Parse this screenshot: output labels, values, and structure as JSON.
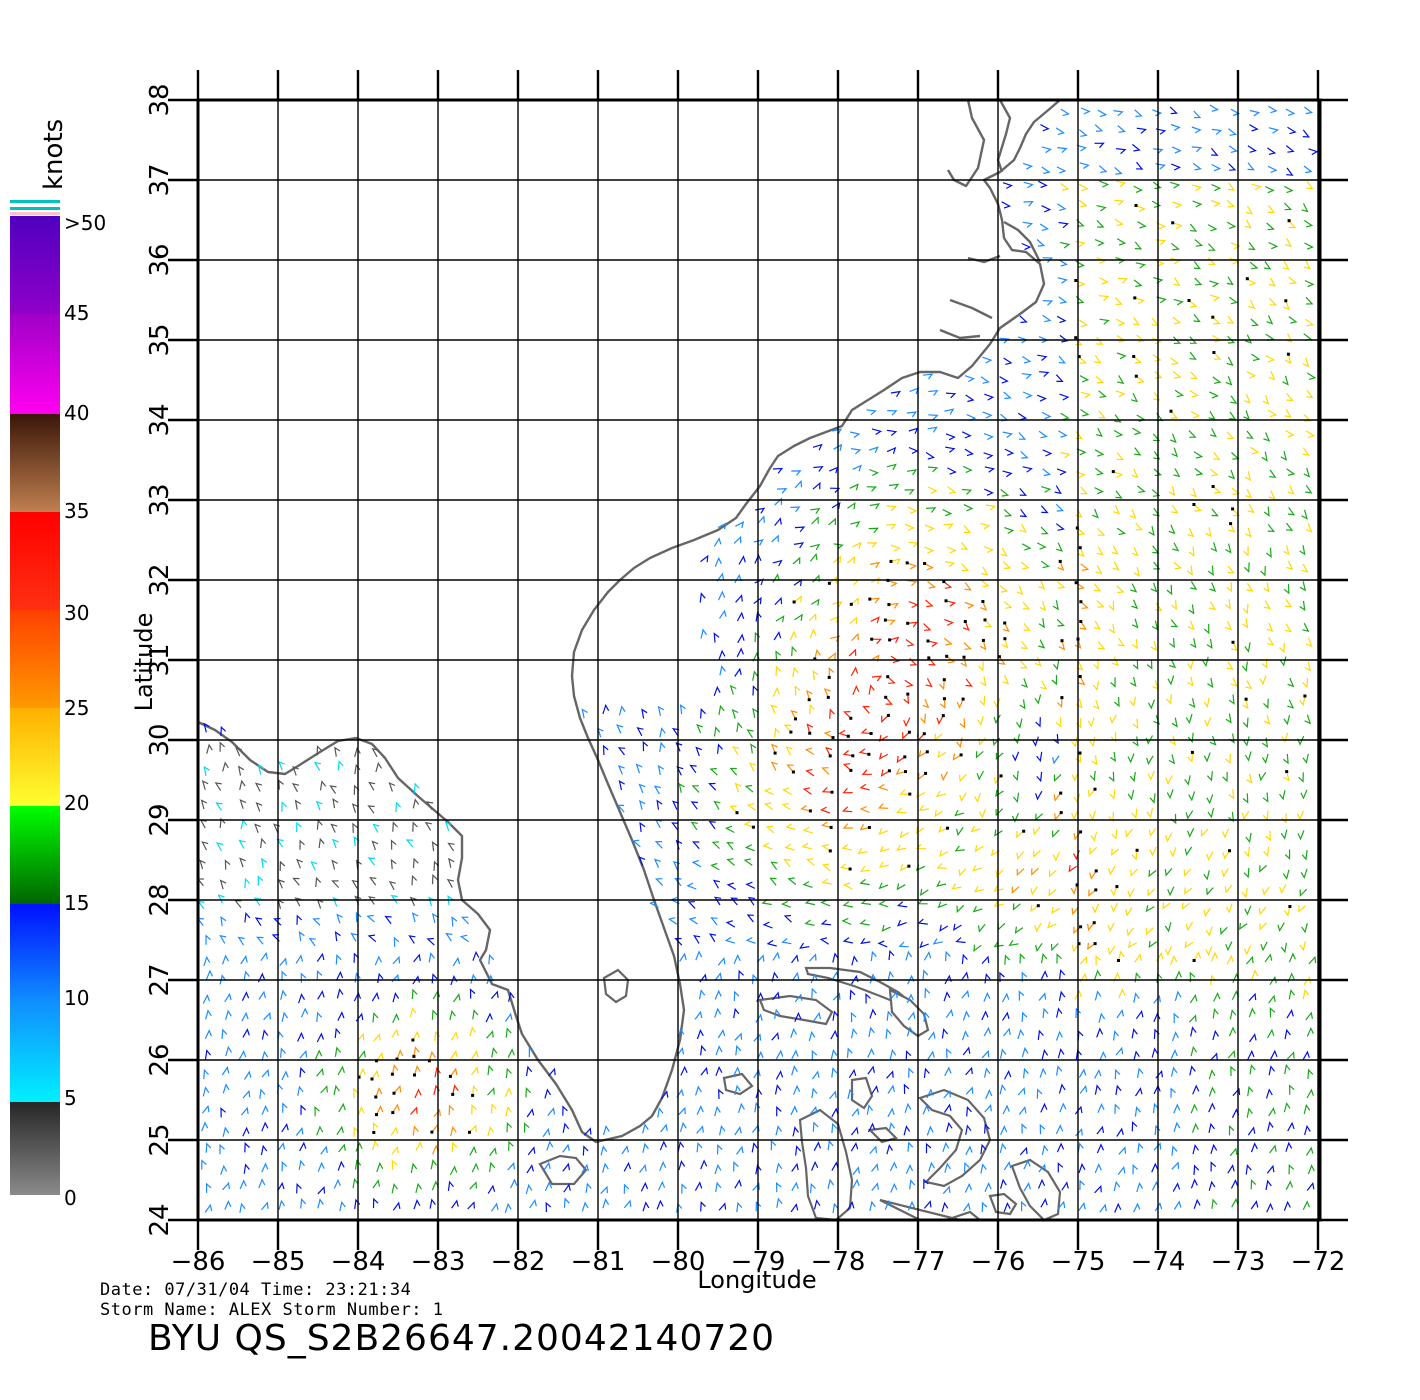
{
  "plot": {
    "xlabel": "Longitude",
    "ylabel": "Latitude",
    "lon_ticks": [
      "-86",
      "-85",
      "-84",
      "-83",
      "-82",
      "-81",
      "-80",
      "-79",
      "-78",
      "-77",
      "-76",
      "-75",
      "-74",
      "-73",
      "-72"
    ],
    "lat_ticks": [
      "24",
      "25",
      "26",
      "27",
      "28",
      "29",
      "30",
      "31",
      "32",
      "33",
      "34",
      "35",
      "36",
      "37",
      "38"
    ]
  },
  "colorbar": {
    "unit": "knots",
    "labels": [
      "0",
      "5",
      "10",
      "15",
      "20",
      "25",
      "30",
      "35",
      "40",
      "45",
      ">50"
    ]
  },
  "info": {
    "line1": "Date: 07/31/04   Time: 23:21:34",
    "line2": "Storm Name: ALEX   Storm Number: 1",
    "product": "BYU QS_S2B26647.20042140720"
  },
  "colors": {
    "coast": "#666666",
    "grid": "#000000",
    "wind_low": "#555555",
    "wind_calm": "#00d8f0",
    "wind_10": "#1a8cff",
    "wind_15": "#0010e0",
    "wind_17": "#18a818",
    "wind_20": "#ffd800",
    "wind_25": "#ff8c00",
    "wind_30": "#ff2000",
    "rain_flag": "#000000"
  }
}
